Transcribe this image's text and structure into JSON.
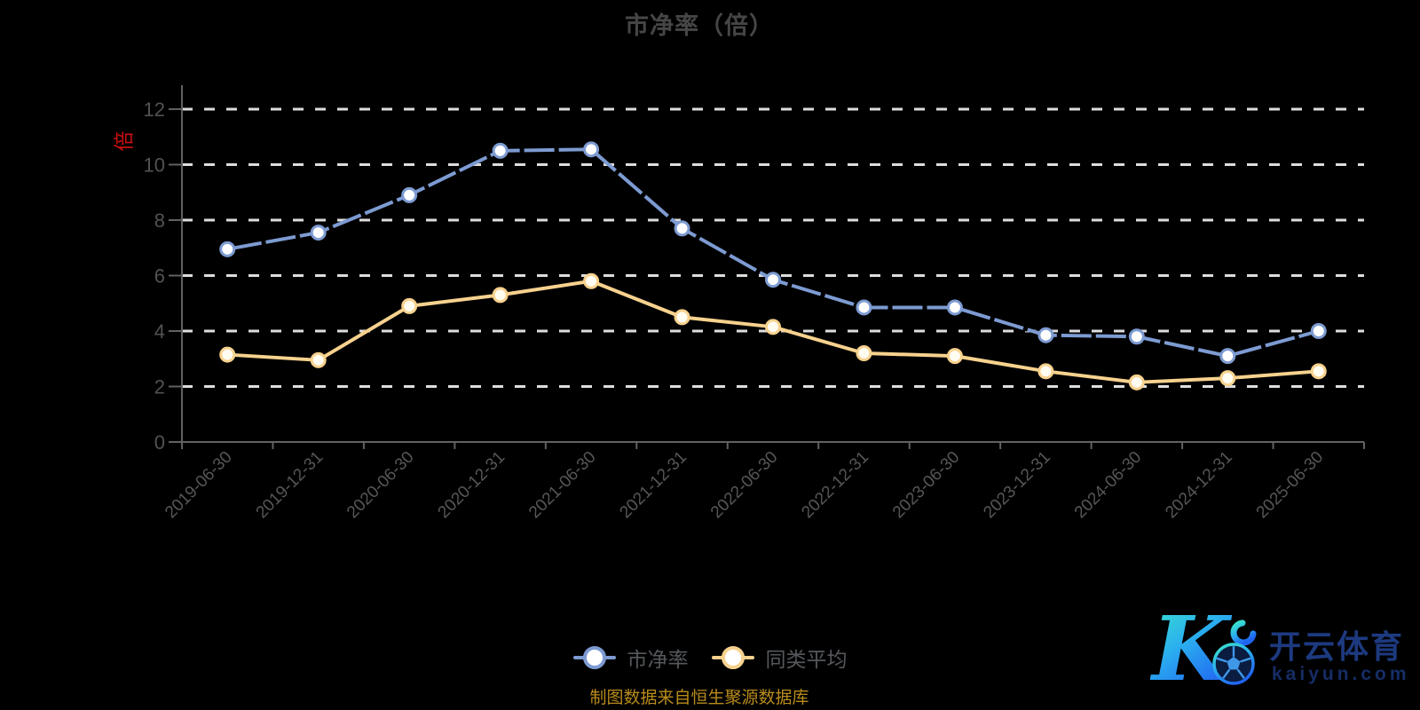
{
  "title": "市净率（倍）",
  "y_axis": {
    "unit": "倍"
  },
  "legend": [
    {
      "label": "市净率",
      "color": "#7d9bd2"
    },
    {
      "label": "同类平均",
      "color": "#f7d28e"
    }
  ],
  "source_note": "制图数据来自恒生聚源数据库",
  "watermark": {
    "letter": "K",
    "brand": "开云体育",
    "domain": "kaiyun.com"
  },
  "chart_data": {
    "type": "line",
    "title": "市净率（倍）",
    "unit": "倍",
    "categories": [
      "2019-06-30",
      "2019-12-31",
      "2020-06-30",
      "2020-12-31",
      "2021-06-30",
      "2021-12-31",
      "2022-06-30",
      "2022-12-31",
      "2023-06-30",
      "2023-12-31",
      "2024-06-30",
      "2024-12-31",
      "2025-06-30"
    ],
    "series": [
      {
        "name": "市净率",
        "color": "#7d9bd2",
        "marker_fill": "#ffffff",
        "values": [
          6.95,
          7.55,
          8.9,
          10.5,
          10.55,
          7.7,
          5.85,
          4.85,
          4.85,
          3.85,
          3.8,
          3.1,
          4.0
        ]
      },
      {
        "name": "同类平均",
        "color": "#f7d28e",
        "marker_fill": "#fffcf2",
        "values": [
          3.15,
          2.95,
          4.9,
          5.3,
          5.8,
          4.5,
          4.15,
          3.2,
          3.1,
          2.55,
          2.15,
          2.3,
          2.55
        ]
      }
    ],
    "ylim": [
      0,
      12
    ],
    "yticks": [
      0,
      2,
      4,
      6,
      8,
      10,
      12
    ],
    "grid": {
      "horizontal": true,
      "style": "dashed",
      "color": "#f0f0f0"
    },
    "background": "#000000",
    "legend_position": "bottom",
    "x_label_rotation": 45
  }
}
